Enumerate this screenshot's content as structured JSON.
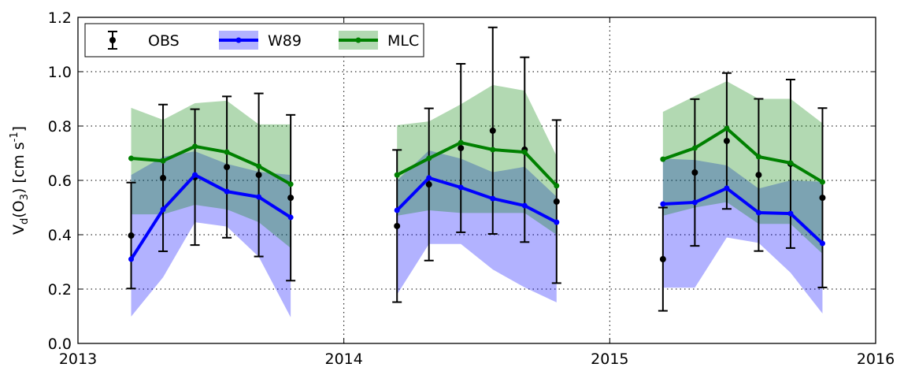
{
  "chart_data": {
    "type": "line",
    "ylabel_parts": [
      "V",
      "d",
      "(O",
      "3",
      ") [cm s",
      "-1",
      "]"
    ],
    "x": [
      2013.2,
      2013.32,
      2013.44,
      2013.56,
      2013.68,
      2013.8,
      2014.2,
      2014.32,
      2014.44,
      2014.56,
      2014.68,
      2014.8,
      2015.2,
      2015.32,
      2015.44,
      2015.56,
      2015.68,
      2015.8
    ],
    "xlim": [
      2013,
      2016
    ],
    "xticks": [
      2013,
      2014,
      2015,
      2016
    ],
    "ylim": [
      0,
      1.2
    ],
    "yticks": [
      {
        "value": 0,
        "label": "0.0"
      },
      {
        "value": 0.2,
        "label": "0.2"
      },
      {
        "value": 0.4,
        "label": "0.4"
      },
      {
        "value": 0.6,
        "label": "0.6"
      },
      {
        "value": 0.8,
        "label": "0.8"
      },
      {
        "value": 1.0,
        "label": "1.0"
      },
      {
        "value": 1.2,
        "label": "1.2"
      }
    ],
    "grid": true,
    "legend": "upper left",
    "series": [
      {
        "name": "OBS",
        "color": "#000000",
        "values": [
          0.397,
          0.609,
          0.612,
          0.649,
          0.62,
          0.536,
          0.432,
          0.585,
          0.719,
          0.783,
          0.713,
          0.522,
          0.31,
          0.629,
          0.745,
          0.62,
          0.661,
          0.536
        ],
        "error": [
          0.195,
          0.27,
          0.25,
          0.26,
          0.3,
          0.305,
          0.28,
          0.28,
          0.31,
          0.38,
          0.34,
          0.3,
          0.19,
          0.27,
          0.25,
          0.28,
          0.31,
          0.33
        ]
      },
      {
        "name": "W89",
        "color": "#0000ff",
        "values": [
          0.31,
          0.493,
          0.62,
          0.559,
          0.539,
          0.464,
          0.49,
          0.609,
          0.574,
          0.533,
          0.507,
          0.446,
          0.513,
          0.519,
          0.571,
          0.481,
          0.478,
          0.368
        ],
        "band_low": [
          0.099,
          0.243,
          0.446,
          0.43,
          0.319,
          0.096,
          0.18,
          0.366,
          0.366,
          0.272,
          0.206,
          0.151,
          0.205,
          0.205,
          0.39,
          0.37,
          0.26,
          0.11
        ],
        "band_high": [
          0.62,
          0.687,
          0.707,
          0.661,
          0.632,
          0.62,
          0.6,
          0.71,
          0.68,
          0.63,
          0.65,
          0.54,
          0.68,
          0.675,
          0.655,
          0.57,
          0.6,
          0.595
        ]
      },
      {
        "name": "MLC",
        "color": "#008000",
        "values": [
          0.681,
          0.672,
          0.725,
          0.704,
          0.652,
          0.586,
          0.62,
          0.681,
          0.739,
          0.713,
          0.704,
          0.58,
          0.678,
          0.719,
          0.791,
          0.687,
          0.664,
          0.594
        ],
        "band_low": [
          0.475,
          0.475,
          0.51,
          0.493,
          0.446,
          0.351,
          0.47,
          0.49,
          0.48,
          0.48,
          0.48,
          0.4,
          0.47,
          0.5,
          0.52,
          0.44,
          0.44,
          0.33
        ],
        "band_high": [
          0.867,
          0.823,
          0.884,
          0.893,
          0.806,
          0.806,
          0.803,
          0.817,
          0.88,
          0.951,
          0.93,
          0.69,
          0.852,
          0.91,
          0.965,
          0.9,
          0.9,
          0.81
        ]
      }
    ]
  }
}
